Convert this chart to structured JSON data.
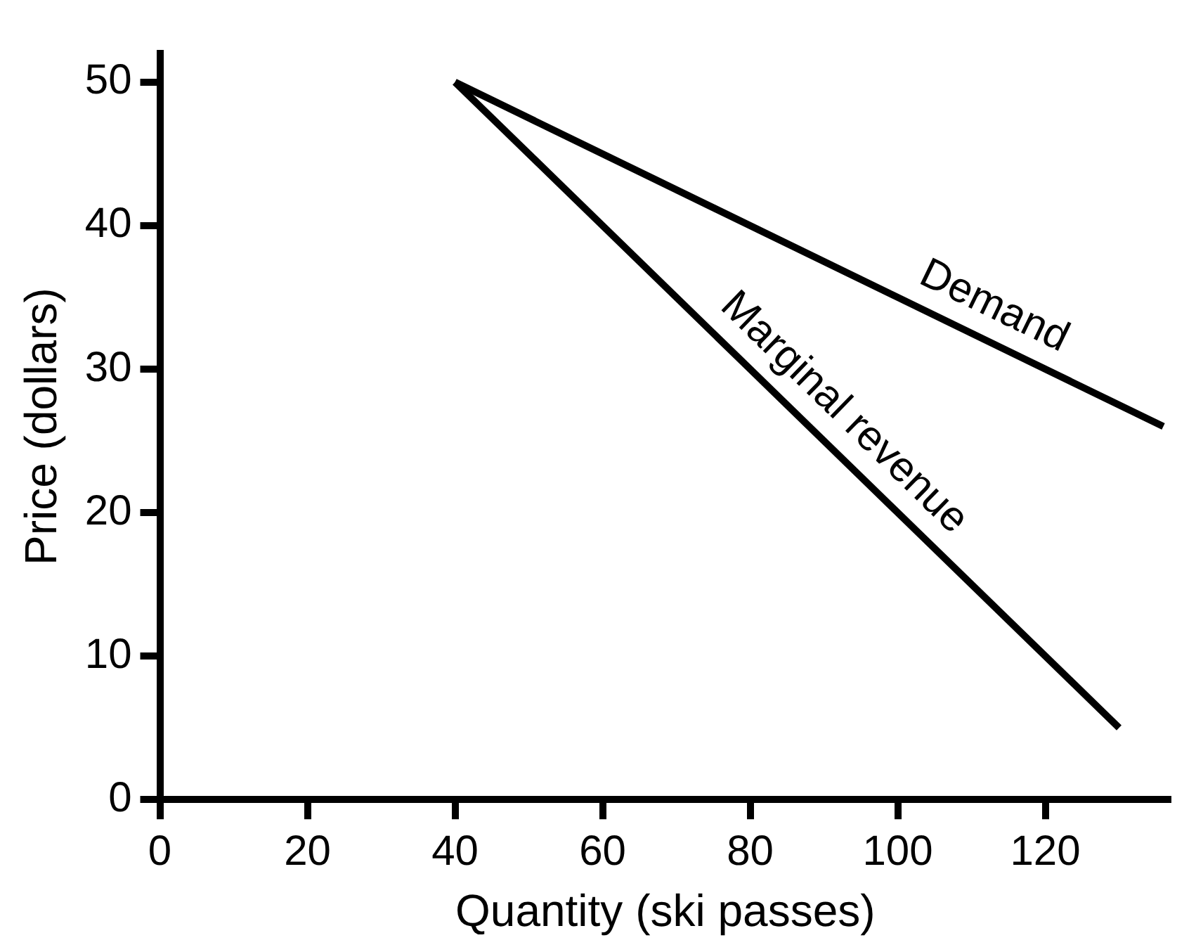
{
  "chart_data": {
    "type": "line",
    "xlabel": "Quantity (ski passes)",
    "ylabel": "Price (dollars)",
    "xlim": [
      0,
      137
    ],
    "xticks": [
      0,
      20,
      40,
      60,
      80,
      100,
      120
    ],
    "ylim": [
      0,
      52
    ],
    "yticks": [
      0,
      10,
      20,
      30,
      40,
      50
    ],
    "grid": false,
    "legend": false,
    "marker": "none",
    "line_style": "solid",
    "series": [
      {
        "name": "Demand",
        "color": "#000000",
        "x": [
          40,
          136
        ],
        "values": [
          50,
          26
        ]
      },
      {
        "name": "Marginal revenue",
        "color": "#000000",
        "x": [
          40,
          130
        ],
        "values": [
          50,
          5
        ]
      }
    ]
  }
}
